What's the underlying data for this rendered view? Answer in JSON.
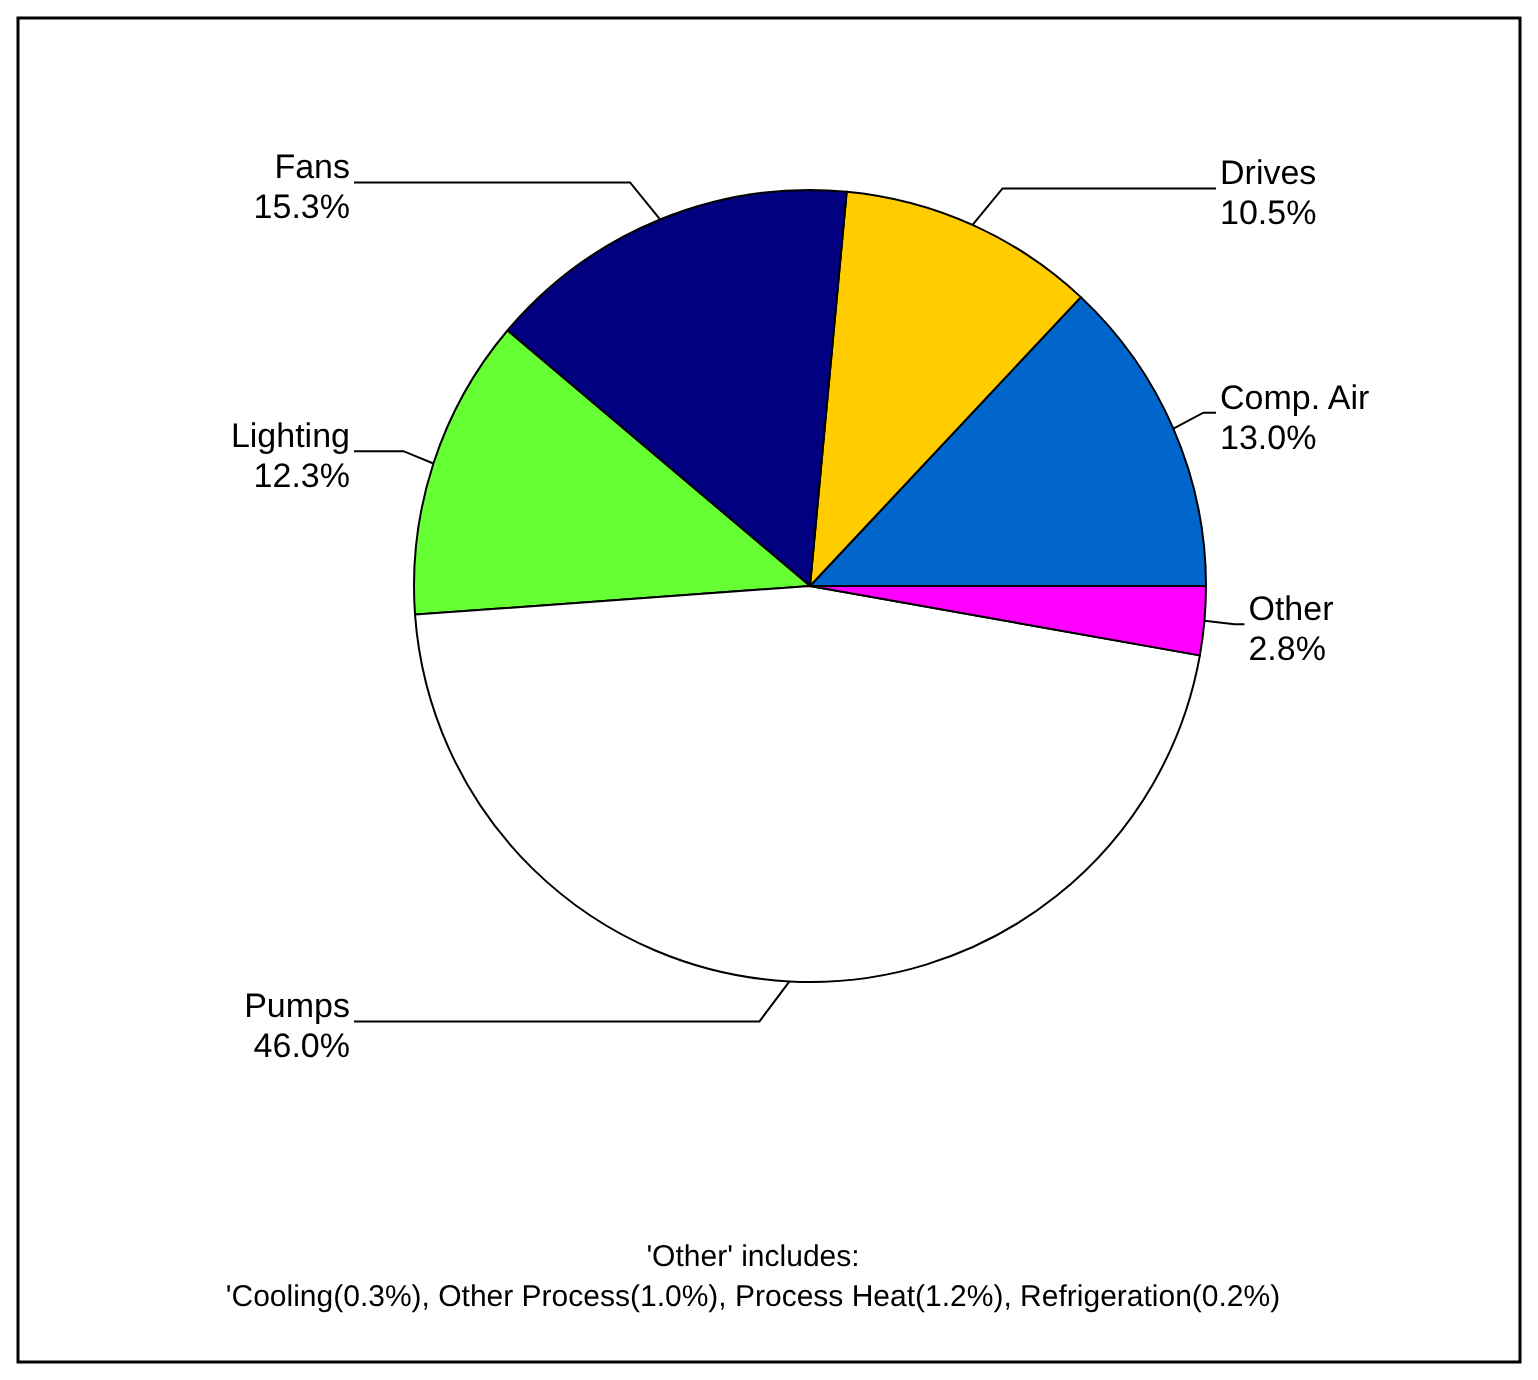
{
  "chart_data": {
    "type": "pie",
    "categories": [
      "Comp. Air",
      "Drives",
      "Fans",
      "Lighting",
      "Pumps",
      "Other"
    ],
    "values": [
      13.0,
      10.5,
      15.3,
      12.3,
      46.0,
      2.8
    ],
    "value_labels": [
      "13.0%",
      "10.5%",
      "15.3%",
      "12.3%",
      "46.0%",
      "2.8%"
    ],
    "colors": [
      "#0066cc",
      "#ffcc00",
      "#000080",
      "#66ff33",
      "#ffffff",
      "#ff00ff"
    ],
    "annotations": [
      "'Other' includes:",
      "'Cooling(0.3%), Other Process(1.0%), Process Heat(1.2%), Refrigeration(0.2%)"
    ]
  }
}
